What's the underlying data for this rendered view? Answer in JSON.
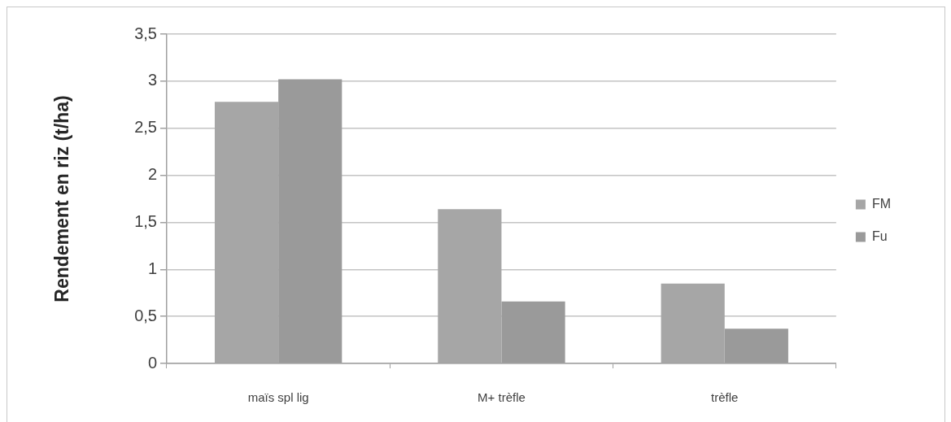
{
  "chart_data": {
    "type": "bar",
    "ylabel": "Rendement en riz (t/ha)",
    "categories": [
      "maïs spl lig",
      "M+ trèfle",
      "trèfle"
    ],
    "series": [
      {
        "name": "FM",
        "color": "#a6a6a6",
        "values": [
          2.78,
          1.64,
          0.85
        ]
      },
      {
        "name": "Fu",
        "color": "#9a9a9a",
        "values": [
          3.02,
          0.66,
          0.37
        ]
      }
    ],
    "ylim": [
      0,
      3.5
    ],
    "yticks": [
      0,
      {
        "value": 0.5,
        "label": "0,5"
      },
      1,
      {
        "value": 1.5,
        "label": "1,5"
      },
      2,
      {
        "value": 2.5,
        "label": "2,5"
      },
      3,
      {
        "value": 3.5,
        "label": "3,5"
      }
    ],
    "grid": "y",
    "legend": "right"
  }
}
